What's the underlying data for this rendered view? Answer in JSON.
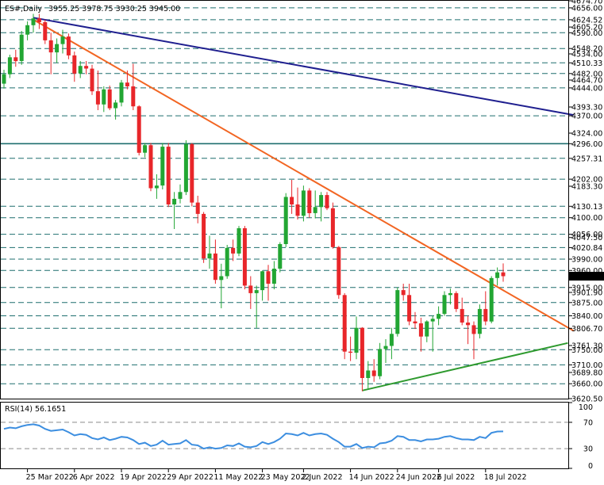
{
  "header": {
    "symbol": "ES#,Daily",
    "ohlc": "3955.25 3978.75 3930.25 3945.00"
  },
  "rsi": {
    "label": "RSI(14) 56.1651",
    "ticks": [
      "100",
      "70",
      "30",
      "0"
    ]
  },
  "colors": {
    "bull": "#22a633",
    "bear": "#e8262a",
    "orange_trend": "#f26522",
    "navy_trend": "#1f1f8f",
    "green_trend": "#2e9a2e",
    "level_line": "#1f6f6f",
    "rsi_line": "#3c8ee0",
    "price_tag": "#000000"
  },
  "chart_data": [
    {
      "type": "candlestick",
      "title": "ES#,Daily",
      "ylim": [
        3620.5,
        4674.7
      ],
      "y_ticks": [
        "4674.70",
        "4656.00",
        "4624.52",
        "4605.20",
        "4590.00",
        "4548.20",
        "4534.00",
        "4510.33",
        "4482.00",
        "4464.70",
        "4444.00",
        "4393.30",
        "4370.00",
        "4324.00",
        "4296.00",
        "4257.31",
        "4202.00",
        "4183.30",
        "4130.13",
        "4100.00",
        "4056.00",
        "4047.50",
        "4020.84",
        "3990.00",
        "3960.00",
        "3945.00",
        "3915.00",
        "3901.90",
        "3875.00",
        "3840.00",
        "3806.70",
        "3761.30",
        "3750.00",
        "3710.00",
        "3689.80",
        "3660.00",
        "3620.50"
      ],
      "horizontal_levels": [
        4656.0,
        4624.52,
        4590.0,
        4548.2,
        4510.33,
        4482.0,
        4444.0,
        4370.0,
        4296.0,
        4257.31,
        4202.0,
        4130.13,
        4100.0,
        4056.0,
        4020.84,
        3990.0,
        3960.0,
        3915.0,
        3875.0,
        3840.0,
        3806.7,
        3750.0,
        3710.0,
        3660.0
      ],
      "x_labels": [
        "25 Mar 2022",
        "6 Apr 2022",
        "19 Apr 2022",
        "29 Apr 2022",
        "11 May 2022",
        "23 May 2022",
        "2 Jun 2022",
        "14 Jun 2022",
        "24 Jun 2022",
        "6 Jul 2022",
        "18 Jul 2022"
      ],
      "current_price": 3945.0,
      "candles": [
        {
          "d": "2022-03-21",
          "o": 4455,
          "h": 4492,
          "l": 4442,
          "c": 4480
        },
        {
          "d": "2022-03-22",
          "o": 4480,
          "h": 4532,
          "l": 4470,
          "c": 4525
        },
        {
          "d": "2022-03-23",
          "o": 4525,
          "h": 4545,
          "l": 4500,
          "c": 4515
        },
        {
          "d": "2022-03-24",
          "o": 4515,
          "h": 4595,
          "l": 4505,
          "c": 4585
        },
        {
          "d": "2022-03-25",
          "o": 4585,
          "h": 4620,
          "l": 4570,
          "c": 4610
        },
        {
          "d": "2022-03-28",
          "o": 4610,
          "h": 4640,
          "l": 4590,
          "c": 4628
        },
        {
          "d": "2022-03-29",
          "o": 4628,
          "h": 4640,
          "l": 4600,
          "c": 4618
        },
        {
          "d": "2022-03-30",
          "o": 4618,
          "h": 4625,
          "l": 4560,
          "c": 4570
        },
        {
          "d": "2022-03-31",
          "o": 4570,
          "h": 4590,
          "l": 4480,
          "c": 4538
        },
        {
          "d": "2022-04-01",
          "o": 4538,
          "h": 4575,
          "l": 4510,
          "c": 4560
        },
        {
          "d": "2022-04-04",
          "o": 4560,
          "h": 4598,
          "l": 4535,
          "c": 4580
        },
        {
          "d": "2022-04-05",
          "o": 4580,
          "h": 4588,
          "l": 4520,
          "c": 4530
        },
        {
          "d": "2022-04-06",
          "o": 4530,
          "h": 4540,
          "l": 4460,
          "c": 4482
        },
        {
          "d": "2022-04-07",
          "o": 4482,
          "h": 4515,
          "l": 4470,
          "c": 4502
        },
        {
          "d": "2022-04-08",
          "o": 4502,
          "h": 4515,
          "l": 4480,
          "c": 4495
        },
        {
          "d": "2022-04-11",
          "o": 4495,
          "h": 4505,
          "l": 4425,
          "c": 4435
        },
        {
          "d": "2022-04-12",
          "o": 4435,
          "h": 4490,
          "l": 4385,
          "c": 4400
        },
        {
          "d": "2022-04-13",
          "o": 4400,
          "h": 4448,
          "l": 4380,
          "c": 4440
        },
        {
          "d": "2022-04-14",
          "o": 4440,
          "h": 4450,
          "l": 4385,
          "c": 4390
        },
        {
          "d": "2022-04-18",
          "o": 4390,
          "h": 4412,
          "l": 4360,
          "c": 4405
        },
        {
          "d": "2022-04-19",
          "o": 4405,
          "h": 4465,
          "l": 4395,
          "c": 4458
        },
        {
          "d": "2022-04-20",
          "o": 4458,
          "h": 4490,
          "l": 4440,
          "c": 4448
        },
        {
          "d": "2022-04-21",
          "o": 4448,
          "h": 4508,
          "l": 4385,
          "c": 4395
        },
        {
          "d": "2022-04-22",
          "o": 4395,
          "h": 4398,
          "l": 4265,
          "c": 4272
        },
        {
          "d": "2022-04-25",
          "o": 4272,
          "h": 4298,
          "l": 4260,
          "c": 4292
        },
        {
          "d": "2022-04-26",
          "o": 4292,
          "h": 4298,
          "l": 4170,
          "c": 4178
        },
        {
          "d": "2022-04-27",
          "o": 4178,
          "h": 4215,
          "l": 4150,
          "c": 4185
        },
        {
          "d": "2022-04-28",
          "o": 4185,
          "h": 4298,
          "l": 4175,
          "c": 4288
        },
        {
          "d": "2022-04-29",
          "o": 4288,
          "h": 4298,
          "l": 4128,
          "c": 4135
        },
        {
          "d": "2022-05-02",
          "o": 4135,
          "h": 4168,
          "l": 4070,
          "c": 4150
        },
        {
          "d": "2022-05-03",
          "o": 4150,
          "h": 4188,
          "l": 4138,
          "c": 4168
        },
        {
          "d": "2022-05-04",
          "o": 4168,
          "h": 4305,
          "l": 4160,
          "c": 4295
        },
        {
          "d": "2022-05-05",
          "o": 4295,
          "h": 4298,
          "l": 4130,
          "c": 4140
        },
        {
          "d": "2022-05-06",
          "o": 4140,
          "h": 4158,
          "l": 4085,
          "c": 4110
        },
        {
          "d": "2022-05-09",
          "o": 4110,
          "h": 4115,
          "l": 3980,
          "c": 3992
        },
        {
          "d": "2022-05-10",
          "o": 3992,
          "h": 4052,
          "l": 3965,
          "c": 4005
        },
        {
          "d": "2022-05-11",
          "o": 4005,
          "h": 4042,
          "l": 3925,
          "c": 3935
        },
        {
          "d": "2022-05-12",
          "o": 3935,
          "h": 3978,
          "l": 3860,
          "c": 3945
        },
        {
          "d": "2022-05-13",
          "o": 3945,
          "h": 4028,
          "l": 3938,
          "c": 4020
        },
        {
          "d": "2022-05-16",
          "o": 4020,
          "h": 4042,
          "l": 3985,
          "c": 4005
        },
        {
          "d": "2022-05-17",
          "o": 4005,
          "h": 4078,
          "l": 3998,
          "c": 4072
        },
        {
          "d": "2022-05-18",
          "o": 4072,
          "h": 4078,
          "l": 3910,
          "c": 3920
        },
        {
          "d": "2022-05-19",
          "o": 3920,
          "h": 3945,
          "l": 3858,
          "c": 3900
        },
        {
          "d": "2022-05-20",
          "o": 3900,
          "h": 3920,
          "l": 3808,
          "c": 3908
        },
        {
          "d": "2022-05-23",
          "o": 3908,
          "h": 3960,
          "l": 3880,
          "c": 3958
        },
        {
          "d": "2022-05-24",
          "o": 3958,
          "h": 3975,
          "l": 3880,
          "c": 3925
        },
        {
          "d": "2022-05-25",
          "o": 3925,
          "h": 3985,
          "l": 3910,
          "c": 3965
        },
        {
          "d": "2022-05-26",
          "o": 3965,
          "h": 4035,
          "l": 3955,
          "c": 4030
        },
        {
          "d": "2022-05-27",
          "o": 4030,
          "h": 4165,
          "l": 4022,
          "c": 4155
        },
        {
          "d": "2022-05-31",
          "o": 4155,
          "h": 4200,
          "l": 4110,
          "c": 4135
        },
        {
          "d": "2022-06-01",
          "o": 4135,
          "h": 4180,
          "l": 4095,
          "c": 4105
        },
        {
          "d": "2022-06-02",
          "o": 4105,
          "h": 4185,
          "l": 4090,
          "c": 4172
        },
        {
          "d": "2022-06-03",
          "o": 4172,
          "h": 4178,
          "l": 4100,
          "c": 4112
        },
        {
          "d": "2022-06-06",
          "o": 4112,
          "h": 4172,
          "l": 4098,
          "c": 4128
        },
        {
          "d": "2022-06-07",
          "o": 4128,
          "h": 4168,
          "l": 4090,
          "c": 4160
        },
        {
          "d": "2022-06-08",
          "o": 4160,
          "h": 4168,
          "l": 4120,
          "c": 4125
        },
        {
          "d": "2022-06-09",
          "o": 4125,
          "h": 4140,
          "l": 4018,
          "c": 4022
        },
        {
          "d": "2022-06-10",
          "o": 4022,
          "h": 4025,
          "l": 3885,
          "c": 3895
        },
        {
          "d": "2022-06-13",
          "o": 3895,
          "h": 3900,
          "l": 3725,
          "c": 3745
        },
        {
          "d": "2022-06-14",
          "o": 3745,
          "h": 3785,
          "l": 3720,
          "c": 3742
        },
        {
          "d": "2022-06-15",
          "o": 3742,
          "h": 3838,
          "l": 3725,
          "c": 3808
        },
        {
          "d": "2022-06-16",
          "o": 3808,
          "h": 3810,
          "l": 3640,
          "c": 3675
        },
        {
          "d": "2022-06-17",
          "o": 3675,
          "h": 3720,
          "l": 3645,
          "c": 3695
        },
        {
          "d": "2022-06-20",
          "o": 3695,
          "h": 3725,
          "l": 3665,
          "c": 3680
        },
        {
          "d": "2022-06-21",
          "o": 3680,
          "h": 3768,
          "l": 3672,
          "c": 3752
        },
        {
          "d": "2022-06-22",
          "o": 3752,
          "h": 3778,
          "l": 3715,
          "c": 3760
        },
        {
          "d": "2022-06-23",
          "o": 3760,
          "h": 3808,
          "l": 3725,
          "c": 3792
        },
        {
          "d": "2022-06-24",
          "o": 3792,
          "h": 3915,
          "l": 3785,
          "c": 3908
        },
        {
          "d": "2022-06-27",
          "o": 3908,
          "h": 3925,
          "l": 3880,
          "c": 3895
        },
        {
          "d": "2022-06-28",
          "o": 3895,
          "h": 3925,
          "l": 3815,
          "c": 3825
        },
        {
          "d": "2022-06-29",
          "o": 3825,
          "h": 3850,
          "l": 3805,
          "c": 3820
        },
        {
          "d": "2022-06-30",
          "o": 3820,
          "h": 3835,
          "l": 3745,
          "c": 3785
        },
        {
          "d": "2022-07-01",
          "o": 3785,
          "h": 3828,
          "l": 3770,
          "c": 3825
        },
        {
          "d": "2022-07-05",
          "o": 3825,
          "h": 3840,
          "l": 3745,
          "c": 3832
        },
        {
          "d": "2022-07-06",
          "o": 3832,
          "h": 3865,
          "l": 3815,
          "c": 3845
        },
        {
          "d": "2022-07-07",
          "o": 3845,
          "h": 3905,
          "l": 3840,
          "c": 3895
        },
        {
          "d": "2022-07-08",
          "o": 3895,
          "h": 3912,
          "l": 3870,
          "c": 3900
        },
        {
          "d": "2022-07-11",
          "o": 3900,
          "h": 3905,
          "l": 3850,
          "c": 3858
        },
        {
          "d": "2022-07-12",
          "o": 3858,
          "h": 3888,
          "l": 3815,
          "c": 3822
        },
        {
          "d": "2022-07-13",
          "o": 3822,
          "h": 3840,
          "l": 3765,
          "c": 3815
        },
        {
          "d": "2022-07-14",
          "o": 3815,
          "h": 3825,
          "l": 3725,
          "c": 3792
        },
        {
          "d": "2022-07-15",
          "o": 3792,
          "h": 3870,
          "l": 3780,
          "c": 3858
        },
        {
          "d": "2022-07-18",
          "o": 3858,
          "h": 3905,
          "l": 3815,
          "c": 3825
        },
        {
          "d": "2022-07-19",
          "o": 3825,
          "h": 3945,
          "l": 3820,
          "c": 3940
        },
        {
          "d": "2022-07-20",
          "o": 3940,
          "h": 3968,
          "l": 3920,
          "c": 3955
        },
        {
          "d": "2022-07-21",
          "o": 3955,
          "h": 3978.75,
          "l": 3930.25,
          "c": 3945
        }
      ],
      "trendlines": [
        {
          "name": "orange",
          "from": {
            "d": "2022-03-28",
            "v": 4625
          },
          "to": {
            "d": "2022-08-08",
            "v": 3800
          }
        },
        {
          "name": "navy",
          "from": {
            "d": "2022-03-28",
            "v": 4630
          },
          "to": {
            "d": "2022-08-08",
            "v": 4372
          }
        },
        {
          "name": "green",
          "from": {
            "d": "2022-06-16",
            "v": 3642
          },
          "to": {
            "d": "2022-08-05",
            "v": 3768
          }
        }
      ]
    },
    {
      "type": "line",
      "title": "RSI(14) 56.1651",
      "ylim": [
        0,
        100
      ],
      "reference_levels": [
        70,
        30
      ],
      "y_ticks": [
        "100",
        "70",
        "30",
        "0"
      ],
      "values": [
        60,
        62,
        61,
        64,
        66,
        67,
        65,
        60,
        57,
        58,
        59,
        55,
        50,
        52,
        51,
        46,
        44,
        47,
        43,
        45,
        48,
        47,
        43,
        37,
        39,
        34,
        36,
        42,
        36,
        37,
        38,
        43,
        36,
        35,
        30,
        32,
        30,
        31,
        35,
        34,
        38,
        33,
        32,
        34,
        40,
        37,
        40,
        45,
        53,
        52,
        50,
        54,
        50,
        52,
        53,
        51,
        45,
        40,
        33,
        33,
        37,
        31,
        33,
        32,
        38,
        39,
        42,
        49,
        48,
        43,
        43,
        41,
        44,
        44,
        45,
        48,
        49,
        46,
        44,
        44,
        43,
        48,
        46,
        54,
        56,
        56.1651
      ]
    }
  ]
}
